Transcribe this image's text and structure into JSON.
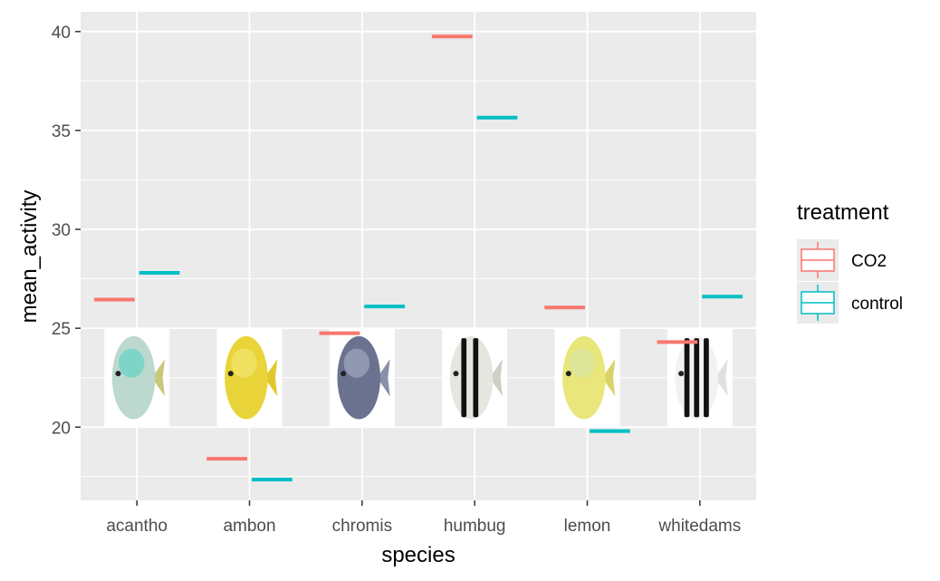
{
  "chart_data": {
    "type": "box",
    "xlabel": "species",
    "ylabel": "mean_activity",
    "categories": [
      "acantho",
      "ambon",
      "chromis",
      "humbug",
      "lemon",
      "whitedams"
    ],
    "ylim": [
      16.3,
      41.0
    ],
    "yticks": [
      20,
      25,
      30,
      35,
      40
    ],
    "grid": true,
    "legend": {
      "title": "treatment",
      "position": "right"
    },
    "series": [
      {
        "name": "CO2",
        "color": "#F8766D",
        "values": [
          26.45,
          18.4,
          24.75,
          39.75,
          26.05,
          24.3
        ]
      },
      {
        "name": "control",
        "color": "#00BFC4",
        "values": [
          27.8,
          17.35,
          26.1,
          35.65,
          19.8,
          26.6
        ]
      }
    ],
    "images": [
      {
        "category": "acantho",
        "icon": "acantho-fish-icon",
        "body": "#bcd8cf",
        "accent": "#6fd3c6",
        "fin": "#c9c77a",
        "stripes": 0
      },
      {
        "category": "ambon",
        "icon": "ambon-fish-icon",
        "body": "#e9d43a",
        "accent": "#f2e46a",
        "fin": "#e2c92a",
        "stripes": 0
      },
      {
        "category": "chromis",
        "icon": "chromis-fish-icon",
        "body": "#6b7290",
        "accent": "#9aa0b8",
        "fin": "#8b90a8",
        "stripes": 0
      },
      {
        "category": "humbug",
        "icon": "humbug-fish-icon",
        "body": "#e6e6e0",
        "accent": "#e6e6e0",
        "fin": "#cfcfc8",
        "stripes": 2
      },
      {
        "category": "lemon",
        "icon": "lemon-fish-icon",
        "body": "#e9e67c",
        "accent": "#d8e6a0",
        "fin": "#d9d36a",
        "stripes": 0
      },
      {
        "category": "whitedams",
        "icon": "whitedams-fish-icon",
        "body": "#f2f2f2",
        "accent": "#f2f2f2",
        "fin": "#e0e0e0",
        "stripes": 3
      }
    ]
  }
}
